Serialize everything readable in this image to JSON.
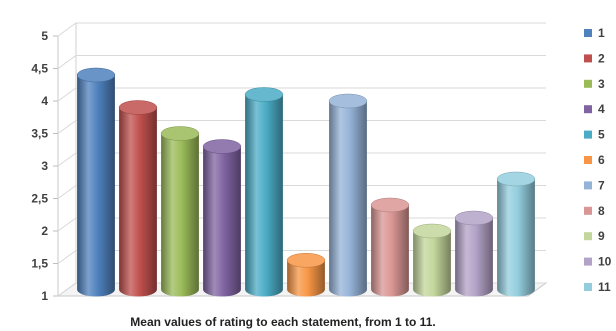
{
  "chart_data": {
    "type": "bar",
    "subtype": "3d-cylinder",
    "categories": [
      "1",
      "2",
      "3",
      "4",
      "5",
      "6",
      "7",
      "8",
      "9",
      "10",
      "11"
    ],
    "values": [
      4.3,
      3.8,
      3.4,
      3.2,
      4.0,
      1.45,
      3.9,
      2.3,
      1.9,
      2.1,
      2.7
    ],
    "colors": [
      "#4F81BD",
      "#C0504D",
      "#9BBB59",
      "#8064A2",
      "#4BACC6",
      "#F79646",
      "#95B3D7",
      "#D99694",
      "#C3D69B",
      "#B3A2C7",
      "#93CDDD"
    ],
    "ylim": [
      1,
      5
    ],
    "yticks": [
      "1",
      "1,5",
      "2",
      "2,5",
      "3",
      "3,5",
      "4",
      "4,5",
      "5"
    ],
    "grid": true,
    "legend": "right",
    "caption": "Mean values of rating to each statement, from 1 to 11."
  }
}
